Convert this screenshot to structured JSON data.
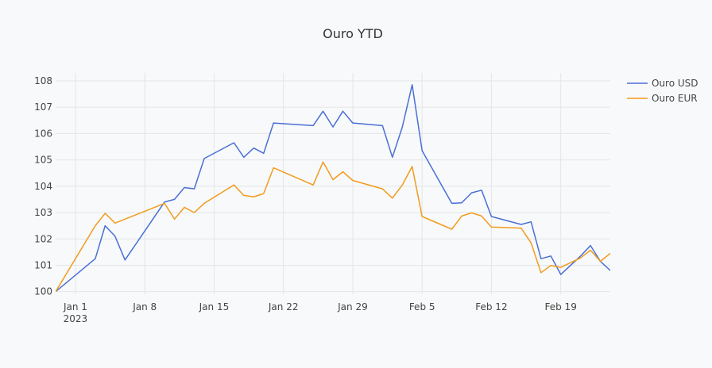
{
  "chart_data": {
    "type": "line",
    "title": "Ouro YTD",
    "xlabel": "",
    "ylabel": "",
    "x_range": [
      -2,
      54
    ],
    "ylim": [
      99.9,
      108.3
    ],
    "grid": true,
    "legend_position": "top-right",
    "x_ticks": [
      {
        "x": 0,
        "label": "Jan 1",
        "sub": "2023"
      },
      {
        "x": 7,
        "label": "Jan 8",
        "sub": ""
      },
      {
        "x": 14,
        "label": "Jan 15",
        "sub": ""
      },
      {
        "x": 21,
        "label": "Jan 22",
        "sub": ""
      },
      {
        "x": 28,
        "label": "Jan 29",
        "sub": ""
      },
      {
        "x": 35,
        "label": "Feb 5",
        "sub": ""
      },
      {
        "x": 42,
        "label": "Feb 12",
        "sub": ""
      },
      {
        "x": 49,
        "label": "Feb 19",
        "sub": ""
      }
    ],
    "y_ticks": [
      100,
      101,
      102,
      103,
      104,
      105,
      106,
      107,
      108
    ],
    "series": [
      {
        "name": "Ouro USD",
        "color": "#4a6fd6",
        "x": [
          -2,
          2,
          3,
          4,
          5,
          9,
          10,
          11,
          12,
          13,
          16,
          17,
          18,
          19,
          20,
          24,
          25,
          26,
          27,
          28,
          31,
          32,
          33,
          34,
          35,
          38,
          39,
          40,
          41,
          42,
          45,
          46,
          47,
          48,
          49,
          51,
          52,
          53,
          54
        ],
        "y": [
          100.0,
          101.25,
          102.5,
          102.1,
          101.2,
          103.4,
          103.5,
          103.95,
          103.9,
          105.05,
          105.65,
          105.1,
          105.45,
          105.25,
          106.4,
          106.3,
          106.85,
          106.25,
          106.85,
          106.4,
          106.3,
          105.1,
          106.25,
          107.85,
          105.35,
          103.35,
          103.37,
          103.75,
          103.85,
          102.85,
          102.55,
          102.65,
          101.25,
          101.35,
          100.65,
          101.35,
          101.75,
          101.15,
          100.8
        ]
      },
      {
        "name": "Ouro EUR",
        "color": "#f29b1d",
        "x": [
          -2,
          2,
          3,
          4,
          5,
          9,
          10,
          11,
          12,
          13,
          16,
          17,
          18,
          19,
          20,
          24,
          25,
          26,
          27,
          28,
          31,
          32,
          33,
          34,
          35,
          38,
          39,
          40,
          41,
          42,
          45,
          46,
          47,
          48,
          49,
          51,
          52,
          53,
          54
        ],
        "y": [
          100.0,
          102.5,
          102.97,
          102.6,
          102.75,
          103.35,
          102.75,
          103.2,
          103.0,
          103.35,
          104.05,
          103.65,
          103.6,
          103.72,
          104.7,
          104.05,
          104.92,
          104.25,
          104.55,
          104.22,
          103.9,
          103.55,
          104.05,
          104.75,
          102.85,
          102.37,
          102.87,
          102.99,
          102.87,
          102.45,
          102.41,
          101.85,
          100.72,
          100.99,
          100.92,
          101.28,
          101.57,
          101.15,
          101.45
        ]
      }
    ]
  }
}
